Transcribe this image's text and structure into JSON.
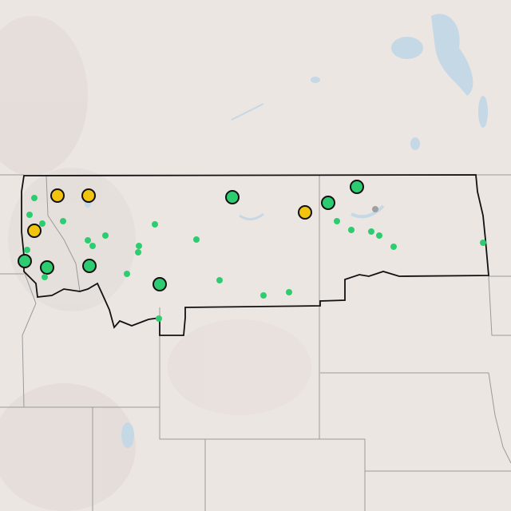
{
  "map": {
    "basemap": "shaded-relief",
    "colors": {
      "land": "#ece6e3",
      "water": "#c5d8e6",
      "state_border": "#9a9a9a",
      "region_outline": "#111111",
      "marker_green": "#2ecc71",
      "marker_yellow": "#f1c40f",
      "marker_gray": "#a0a0a0"
    },
    "markers": [
      {
        "kind": "large",
        "status": "yellow"
      },
      {
        "kind": "large",
        "status": "yellow"
      },
      {
        "kind": "large",
        "status": "yellow"
      },
      {
        "kind": "large",
        "status": "yellow"
      },
      {
        "kind": "large",
        "status": "green"
      },
      {
        "kind": "large",
        "status": "green"
      },
      {
        "kind": "large",
        "status": "green"
      },
      {
        "kind": "large",
        "status": "green"
      },
      {
        "kind": "large",
        "status": "green"
      },
      {
        "kind": "large",
        "status": "green"
      },
      {
        "kind": "large",
        "status": "green"
      },
      {
        "kind": "small",
        "status": "green"
      },
      {
        "kind": "small",
        "status": "green"
      },
      {
        "kind": "small",
        "status": "green"
      },
      {
        "kind": "small",
        "status": "green"
      },
      {
        "kind": "small",
        "status": "green"
      },
      {
        "kind": "small",
        "status": "green"
      },
      {
        "kind": "small",
        "status": "green"
      },
      {
        "kind": "small",
        "status": "green"
      },
      {
        "kind": "small",
        "status": "green"
      },
      {
        "kind": "small",
        "status": "green"
      },
      {
        "kind": "small",
        "status": "green"
      },
      {
        "kind": "small",
        "status": "green"
      },
      {
        "kind": "small",
        "status": "green"
      },
      {
        "kind": "small",
        "status": "green"
      },
      {
        "kind": "small",
        "status": "green"
      },
      {
        "kind": "small",
        "status": "green"
      },
      {
        "kind": "small",
        "status": "green"
      },
      {
        "kind": "small",
        "status": "green"
      },
      {
        "kind": "small",
        "status": "green"
      },
      {
        "kind": "small",
        "status": "green"
      },
      {
        "kind": "small",
        "status": "green"
      },
      {
        "kind": "small",
        "status": "green"
      },
      {
        "kind": "small",
        "status": "green"
      },
      {
        "kind": "small",
        "status": "green"
      },
      {
        "kind": "small",
        "status": "gray"
      }
    ]
  }
}
